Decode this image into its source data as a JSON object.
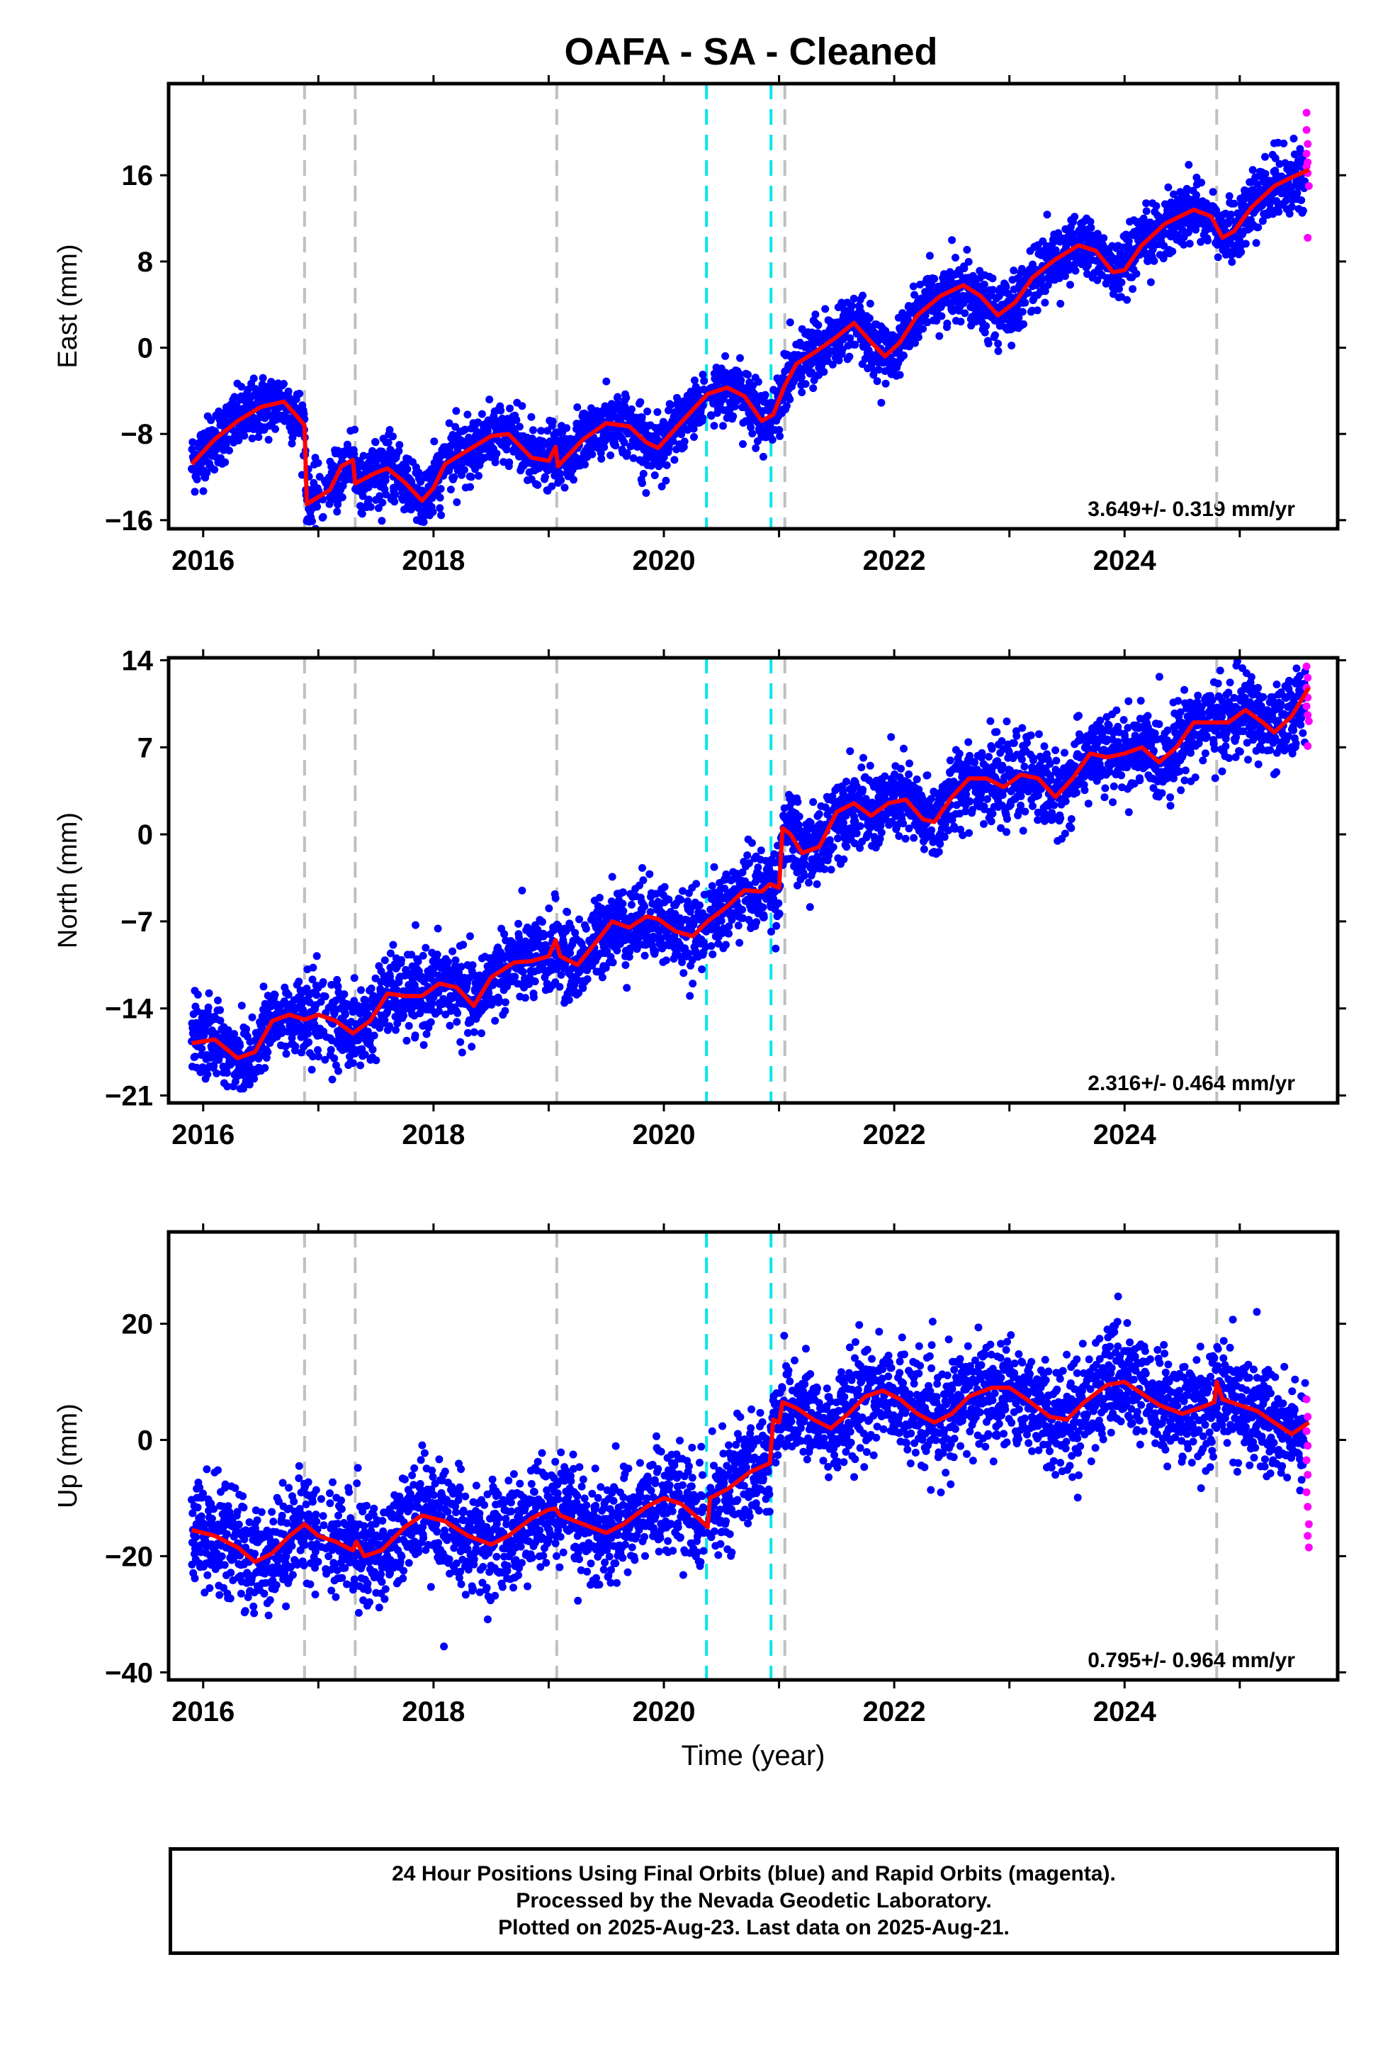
{
  "title": "OAFA  - SA - Cleaned",
  "footer": {
    "line1": "24 Hour Positions Using Final Orbits (blue) and Rapid Orbits (magenta).",
    "line2": "Processed by the Nevada Geodetic Laboratory.",
    "line3": "Plotted on 2025-Aug-23. Last data on 2025-Aug-21."
  },
  "colors": {
    "final": "#0000ff",
    "rapid": "#ff00ff",
    "model": "#ff0000",
    "equipment_change": "#c0c0c0",
    "earthquake": "#00e5ee"
  },
  "chart_data": [
    {
      "type": "scatter",
      "component": "East",
      "ylabel": "East (mm)",
      "xlabel": "",
      "rate": "3.649+/- 0.319 mm/yr",
      "xlim": [
        2015.7,
        2025.85
      ],
      "ylim": [
        -16.8,
        24.5
      ],
      "yticks": [
        -16,
        -8,
        0,
        8,
        16
      ],
      "xticks": [
        2016,
        2018,
        2020,
        2022,
        2024
      ],
      "model": [
        [
          2015.9,
          -10.8
        ],
        [
          2016.1,
          -8.5
        ],
        [
          2016.3,
          -6.8
        ],
        [
          2016.5,
          -5.5
        ],
        [
          2016.7,
          -5.0
        ],
        [
          2016.8,
          -6.2
        ],
        [
          2016.88,
          -7.2
        ],
        [
          2016.9,
          -14.5
        ],
        [
          2017.1,
          -13.2
        ],
        [
          2017.2,
          -11.0
        ],
        [
          2017.3,
          -10.4
        ],
        [
          2017.32,
          -12.6
        ],
        [
          2017.5,
          -11.6
        ],
        [
          2017.6,
          -11.2
        ],
        [
          2017.75,
          -12.5
        ],
        [
          2017.9,
          -14.2
        ],
        [
          2018.0,
          -13.0
        ],
        [
          2018.1,
          -10.8
        ],
        [
          2018.3,
          -9.5
        ],
        [
          2018.5,
          -8.2
        ],
        [
          2018.65,
          -8.0
        ],
        [
          2018.85,
          -10.2
        ],
        [
          2019.0,
          -10.5
        ],
        [
          2019.06,
          -9.2
        ],
        [
          2019.08,
          -11.0
        ],
        [
          2019.3,
          -8.5
        ],
        [
          2019.5,
          -7.0
        ],
        [
          2019.7,
          -7.3
        ],
        [
          2019.85,
          -8.8
        ],
        [
          2019.95,
          -9.3
        ],
        [
          2020.1,
          -7.5
        ],
        [
          2020.3,
          -5.2
        ],
        [
          2020.38,
          -4.3
        ],
        [
          2020.55,
          -3.7
        ],
        [
          2020.7,
          -4.5
        ],
        [
          2020.85,
          -6.8
        ],
        [
          2020.95,
          -6.2
        ],
        [
          2021.05,
          -3.5
        ],
        [
          2021.15,
          -1.5
        ],
        [
          2021.3,
          -0.5
        ],
        [
          2021.5,
          1.0
        ],
        [
          2021.65,
          2.3
        ],
        [
          2021.8,
          0.5
        ],
        [
          2021.92,
          -0.8
        ],
        [
          2022.05,
          0.5
        ],
        [
          2022.2,
          3.0
        ],
        [
          2022.4,
          4.8
        ],
        [
          2022.6,
          5.8
        ],
        [
          2022.75,
          4.8
        ],
        [
          2022.9,
          3.0
        ],
        [
          2023.05,
          4.2
        ],
        [
          2023.2,
          6.5
        ],
        [
          2023.4,
          8.2
        ],
        [
          2023.6,
          9.5
        ],
        [
          2023.75,
          9.0
        ],
        [
          2023.9,
          7.0
        ],
        [
          2024.0,
          7.2
        ],
        [
          2024.15,
          9.5
        ],
        [
          2024.35,
          11.5
        ],
        [
          2024.6,
          12.8
        ],
        [
          2024.75,
          12.2
        ],
        [
          2024.85,
          10.2
        ],
        [
          2024.95,
          10.8
        ],
        [
          2025.1,
          13.0
        ],
        [
          2025.3,
          15.0
        ],
        [
          2025.45,
          15.8
        ],
        [
          2025.6,
          16.5
        ]
      ],
      "rapid": [
        [
          2025.58,
          21.8
        ],
        [
          2025.58,
          20.2
        ],
        [
          2025.59,
          18.9
        ],
        [
          2025.58,
          18.0
        ],
        [
          2025.59,
          17.2
        ],
        [
          2025.58,
          16.8
        ],
        [
          2025.59,
          16.2
        ],
        [
          2025.6,
          15.0
        ],
        [
          2025.59,
          10.2
        ]
      ]
    },
    {
      "type": "scatter",
      "component": "North",
      "ylabel": "North (mm)",
      "xlabel": "",
      "rate": "2.316+/- 0.464 mm/yr",
      "xlim": [
        2015.7,
        2025.85
      ],
      "ylim": [
        -21.6,
        14.2
      ],
      "yticks": [
        -21,
        -14,
        -7,
        0,
        7,
        14
      ],
      "xticks": [
        2016,
        2018,
        2020,
        2022,
        2024
      ],
      "model": [
        [
          2015.9,
          -16.8
        ],
        [
          2016.1,
          -16.5
        ],
        [
          2016.3,
          -18.0
        ],
        [
          2016.45,
          -17.5
        ],
        [
          2016.6,
          -15.0
        ],
        [
          2016.75,
          -14.5
        ],
        [
          2016.88,
          -14.9
        ],
        [
          2017.0,
          -14.5
        ],
        [
          2017.15,
          -15.0
        ],
        [
          2017.3,
          -16.0
        ],
        [
          2017.45,
          -15.0
        ],
        [
          2017.6,
          -12.8
        ],
        [
          2017.75,
          -13.0
        ],
        [
          2017.9,
          -13.0
        ],
        [
          2018.05,
          -12.0
        ],
        [
          2018.2,
          -12.3
        ],
        [
          2018.35,
          -13.8
        ],
        [
          2018.5,
          -11.5
        ],
        [
          2018.7,
          -10.3
        ],
        [
          2018.85,
          -10.2
        ],
        [
          2019.0,
          -9.8
        ],
        [
          2019.06,
          -8.5
        ],
        [
          2019.1,
          -9.8
        ],
        [
          2019.25,
          -10.5
        ],
        [
          2019.4,
          -8.8
        ],
        [
          2019.55,
          -7.0
        ],
        [
          2019.7,
          -7.5
        ],
        [
          2019.85,
          -6.6
        ],
        [
          2019.95,
          -6.8
        ],
        [
          2020.1,
          -7.8
        ],
        [
          2020.25,
          -8.2
        ],
        [
          2020.38,
          -7.0
        ],
        [
          2020.55,
          -5.8
        ],
        [
          2020.7,
          -4.5
        ],
        [
          2020.85,
          -4.6
        ],
        [
          2020.92,
          -4.0
        ],
        [
          2021.0,
          -4.3
        ],
        [
          2021.03,
          0.5
        ],
        [
          2021.1,
          0.0
        ],
        [
          2021.2,
          -1.5
        ],
        [
          2021.35,
          -1.0
        ],
        [
          2021.5,
          1.8
        ],
        [
          2021.65,
          2.5
        ],
        [
          2021.8,
          1.5
        ],
        [
          2021.95,
          2.5
        ],
        [
          2022.1,
          2.8
        ],
        [
          2022.25,
          1.2
        ],
        [
          2022.35,
          1.0
        ],
        [
          2022.5,
          3.0
        ],
        [
          2022.65,
          4.5
        ],
        [
          2022.8,
          4.5
        ],
        [
          2022.95,
          3.8
        ],
        [
          2023.1,
          4.8
        ],
        [
          2023.25,
          4.5
        ],
        [
          2023.4,
          3.0
        ],
        [
          2023.55,
          4.5
        ],
        [
          2023.7,
          6.5
        ],
        [
          2023.85,
          6.2
        ],
        [
          2024.0,
          6.5
        ],
        [
          2024.15,
          7.0
        ],
        [
          2024.3,
          5.8
        ],
        [
          2024.45,
          7.0
        ],
        [
          2024.6,
          9.0
        ],
        [
          2024.78,
          9.0
        ],
        [
          2024.9,
          9.0
        ],
        [
          2025.05,
          10.0
        ],
        [
          2025.2,
          9.0
        ],
        [
          2025.3,
          8.2
        ],
        [
          2025.45,
          9.5
        ],
        [
          2025.6,
          11.8
        ]
      ],
      "rapid": [
        [
          2025.58,
          13.5
        ],
        [
          2025.59,
          12.6
        ],
        [
          2025.58,
          11.8
        ],
        [
          2025.59,
          11.0
        ],
        [
          2025.58,
          10.3
        ],
        [
          2025.59,
          9.6
        ],
        [
          2025.6,
          9.1
        ],
        [
          2025.59,
          7.1
        ]
      ]
    },
    {
      "type": "scatter",
      "component": "Up",
      "ylabel": "Up (mm)",
      "xlabel": "Time (year)",
      "rate": "0.795+/- 0.964 mm/yr",
      "xlim": [
        2015.7,
        2025.85
      ],
      "ylim": [
        -41.3,
        35.8
      ],
      "yticks": [
        -40,
        -20,
        0,
        20
      ],
      "xticks": [
        2016,
        2018,
        2020,
        2022,
        2024
      ],
      "model": [
        [
          2015.9,
          -15.5
        ],
        [
          2016.1,
          -16.5
        ],
        [
          2016.3,
          -18.5
        ],
        [
          2016.45,
          -21.0
        ],
        [
          2016.6,
          -19.5
        ],
        [
          2016.75,
          -16.5
        ],
        [
          2016.88,
          -14.5
        ],
        [
          2017.0,
          -16.5
        ],
        [
          2017.15,
          -17.5
        ],
        [
          2017.3,
          -19.0
        ],
        [
          2017.33,
          -17.5
        ],
        [
          2017.4,
          -20.0
        ],
        [
          2017.55,
          -19.0
        ],
        [
          2017.75,
          -15.0
        ],
        [
          2017.9,
          -13.0
        ],
        [
          2018.1,
          -14.0
        ],
        [
          2018.3,
          -16.5
        ],
        [
          2018.5,
          -18.0
        ],
        [
          2018.65,
          -16.5
        ],
        [
          2018.85,
          -13.5
        ],
        [
          2019.0,
          -12.0
        ],
        [
          2019.06,
          -11.8
        ],
        [
          2019.1,
          -13.0
        ],
        [
          2019.3,
          -14.5
        ],
        [
          2019.5,
          -16.0
        ],
        [
          2019.65,
          -14.5
        ],
        [
          2019.85,
          -11.5
        ],
        [
          2020.0,
          -10.0
        ],
        [
          2020.15,
          -11.0
        ],
        [
          2020.3,
          -13.5
        ],
        [
          2020.38,
          -15.0
        ],
        [
          2020.4,
          -10.0
        ],
        [
          2020.55,
          -8.5
        ],
        [
          2020.75,
          -5.5
        ],
        [
          2020.92,
          -4.0
        ],
        [
          2020.95,
          3.5
        ],
        [
          2021.0,
          3.0
        ],
        [
          2021.03,
          6.5
        ],
        [
          2021.15,
          5.5
        ],
        [
          2021.3,
          3.5
        ],
        [
          2021.45,
          2.0
        ],
        [
          2021.6,
          4.5
        ],
        [
          2021.75,
          7.5
        ],
        [
          2021.9,
          8.5
        ],
        [
          2022.05,
          7.0
        ],
        [
          2022.2,
          4.5
        ],
        [
          2022.35,
          3.0
        ],
        [
          2022.5,
          4.5
        ],
        [
          2022.65,
          7.5
        ],
        [
          2022.85,
          9.0
        ],
        [
          2023.0,
          9.0
        ],
        [
          2023.15,
          7.0
        ],
        [
          2023.35,
          4.0
        ],
        [
          2023.5,
          3.5
        ],
        [
          2023.65,
          6.5
        ],
        [
          2023.85,
          9.5
        ],
        [
          2024.0,
          10.0
        ],
        [
          2024.15,
          8.0
        ],
        [
          2024.3,
          6.0
        ],
        [
          2024.5,
          4.5
        ],
        [
          2024.65,
          5.5
        ],
        [
          2024.78,
          6.5
        ],
        [
          2024.8,
          10.0
        ],
        [
          2024.85,
          7.0
        ],
        [
          2025.0,
          6.0
        ],
        [
          2025.15,
          5.0
        ],
        [
          2025.3,
          3.0
        ],
        [
          2025.45,
          1.0
        ],
        [
          2025.6,
          3.0
        ]
      ],
      "rapid": [
        [
          2025.58,
          7.0
        ],
        [
          2025.59,
          4.0
        ],
        [
          2025.58,
          1.5
        ],
        [
          2025.59,
          -1.0
        ],
        [
          2025.58,
          -3.5
        ],
        [
          2025.59,
          -6.0
        ],
        [
          2025.58,
          -9.0
        ],
        [
          2025.59,
          -11.5
        ],
        [
          2025.6,
          -14.5
        ],
        [
          2025.59,
          -16.5
        ],
        [
          2025.6,
          -18.5
        ]
      ]
    }
  ],
  "event_lines": {
    "equipment": [
      2016.88,
      2017.32,
      2019.07,
      2021.05,
      2024.8
    ],
    "earthquake": [
      2020.37,
      2020.93
    ]
  }
}
